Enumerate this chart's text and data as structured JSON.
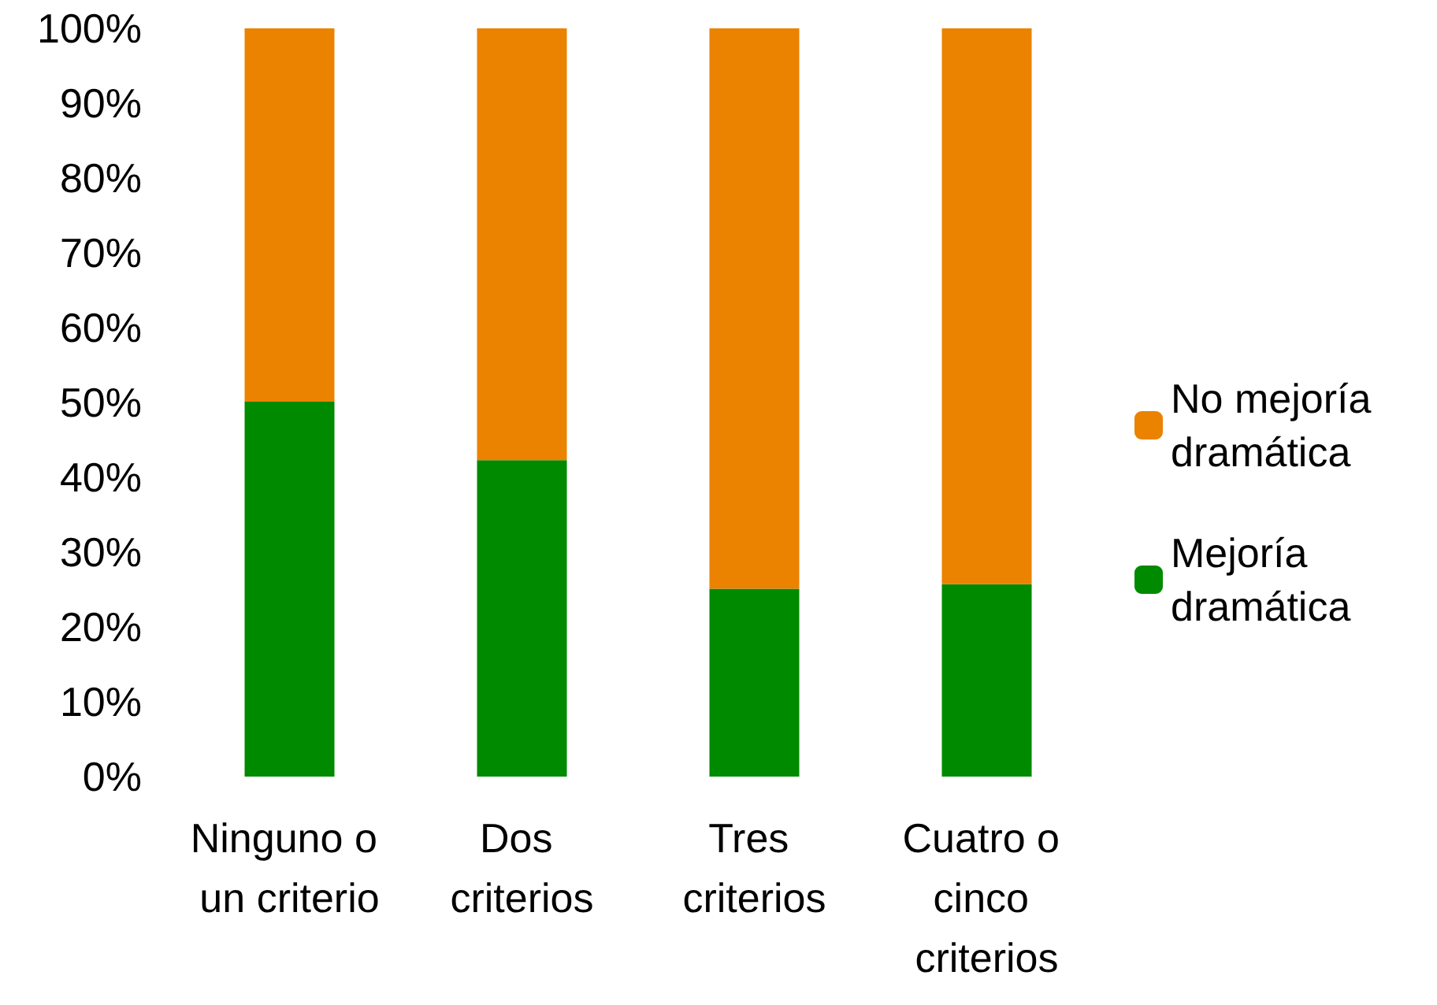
{
  "chart_data": {
    "type": "bar",
    "stacked": true,
    "categories": [
      "Ninguno o un criterio",
      "Dos criterios",
      "Tres criterios",
      "Cuatro o cinco criterios"
    ],
    "series": [
      {
        "name": "Mejoría dramática",
        "color": "#008a00",
        "values": [
          50.1,
          42.3,
          25.1,
          25.7
        ]
      },
      {
        "name": "No mejoría dramática",
        "color": "#eb8200",
        "values": [
          49.9,
          57.7,
          74.9,
          74.3
        ]
      }
    ],
    "ylim": [
      0,
      100
    ],
    "yticks": [
      {
        "value": 0,
        "label": "0%"
      },
      {
        "value": 10,
        "label": "10%"
      },
      {
        "value": 20,
        "label": "20%"
      },
      {
        "value": 30,
        "label": "30%"
      },
      {
        "value": 40,
        "label": "40%"
      },
      {
        "value": 50,
        "label": "50%"
      },
      {
        "value": 60,
        "label": "60%"
      },
      {
        "value": 70,
        "label": "70%"
      },
      {
        "value": 80,
        "label": "80%"
      },
      {
        "value": 90,
        "label": "90%"
      },
      {
        "value": 100,
        "label": "100%"
      }
    ],
    "grid": false,
    "legend": "right"
  }
}
